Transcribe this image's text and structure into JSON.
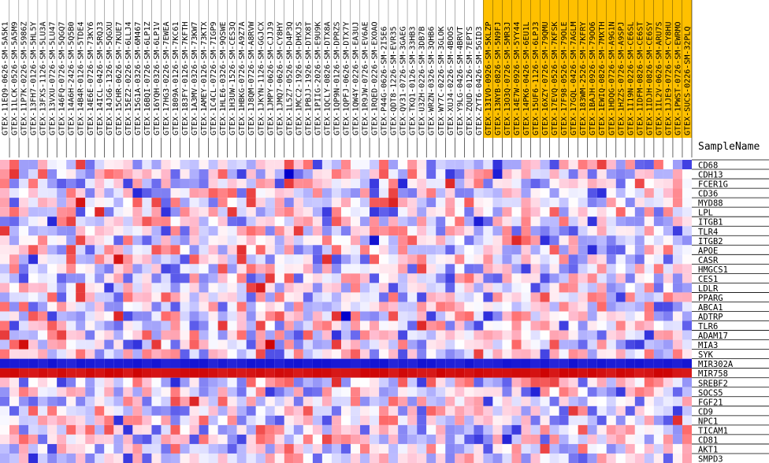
{
  "chart_data": {
    "type": "heatmap",
    "corner_label": "SampleName",
    "samples": [
      "GTEX-11EQ9-0626-SM-5A5K1",
      "GTEX-11LCK-0526-SM-5A5M9",
      "GTEX-11P7K-0226-SM-5986Z",
      "GTEX-13FH7-0126-SM-5HL5Y",
      "GTEX-13FXS-1126-SM-5LU3A",
      "GTEX-13VXU-0726-SM-5LU47",
      "GTEX-146FQ-0726-SM-5QGQ7",
      "GTEX-14A6H-2426-SM-5Q5B0",
      "GTEX-14B4R-0126-SM-5TDE4",
      "GTEX-14E6E-0726-SM-73KY6",
      "GTEX-14ICL-0426-SM-5RQJ3",
      "GTEX-14JG6-1326-SM-5QGXU",
      "GTEX-15CHR-0626-SM-7KUE7",
      "GTEX-15EZ2-0226-SM-6LLJ4",
      "GTEX-15G1A-0326-SM-6M467",
      "GTEX-16BQI-0726-SM-6LP1Z",
      "GTEX-16YQH-0326-SM-6LP1V",
      "GTEX-17HG3-0226-SM-7EWEA",
      "GTEX-1809A-0126-SM-7KC61",
      "GTEX-183FY-0126-SM-7KFTH",
      "GTEX-1A3MV-0326-SM-73KW7",
      "GTEX-1AMEY-0126-SM-73KTX",
      "GTEX-1C4CL-0726-SM-7IGP9",
      "GTEX-1HLE6-0326-SM-9QSWE",
      "GTEX-1H3UW-1526-SM-CES3Q",
      "GTEX-1HBKG-0726-SM-A9Z7A",
      "GTEX-1J8QM-0726-SM-A8RVW",
      "GTEX-1JKYN-1126-SM-GGJCX",
      "GTEX-1JMPY-0626-SM-CJJJ9",
      "GTEX-1JMQ7-0626-SM-CY8HY",
      "GTEX-1L5Z7-0526-SM-D4P3Q",
      "GTEX-1MCC2-1926-SM-DHXJS",
      "GTEX-1PBJJ-1926-SM-DTX8T",
      "GTEX-1PIIG-2026-SM-E9U9K",
      "GTEX-1QCLY-0826-SM-DTX8A",
      "GTEX-1QP9N-0126-SM-DPRZS",
      "GTEX-1QPFJ-0626-SM-DTX7Y",
      "GTEX-1QW4Y-0226-SM-EA3UJ",
      "GTEX-1R9JW-0726-SM-EV6AE",
      "GTEX-1RQED-0226-SM-EXOAO",
      "GTEX-P44G-0626-SM-2I5E6",
      "GTEX-QDT8-1226-SM-EVR35",
      "GTEX-QV31-0726-SM-3GAEG",
      "GTEX-TKQ1-0126-SM-33HB3",
      "GTEX-U3ZH-0226-SM-3DB7B",
      "GTEX-WRZN-0326-SM-3QHB6",
      "GTEX-WY7C-0226-SM-3GLOK",
      "GTEX-XUJ4-0226-SM-4BOOS",
      "GTEX-Y9LG-0426-SM-4BRVT",
      "GTEX-ZQUD-0126-SM-7EPTS",
      "GTEX-ZYT6-0426-SM-5GID3",
      "GTEX-13IVO-0926-SM-5KLZP",
      "GTEX-13NYB-0826-SM-5N9FJ",
      "GTEX-13O3Q-0726-SM-5MR3J",
      "GTEX-14E7W-0926-SM-5YY44",
      "GTEX-14PK6-0426-SM-6EU1L",
      "GTEX-15UF6-1126-SM-6LPJ3",
      "GTEX-16XZY-0726-SM-79QMU",
      "GTEX-17EVQ-0526-SM-7KFSK",
      "GTEX-17F98-0526-SM-79OLE",
      "GTEX-17GQL-0426-SM-7AGLM",
      "GTEX-183WM-2526-SM-7KFRY",
      "GTEX-1BAJH-0926-SM-79OO6",
      "GTEX-1EWIQ-0826-SM-7MXTH",
      "GTEX-1HDQG-0726-SM-A9G1N",
      "GTEX-1HZZS-0726-SM-A9SPJ",
      "GTEX-1I19N-0226-SM-CE6SL",
      "GTEX-1IDFM-0826-SM-CE6ST",
      "GTEX-1IDJH-0826-SM-CE6SY",
      "GTEX-1IL2V-0626-SM-ARU7S",
      "GTEX-1JJE9-0726-SM-CY8HU",
      "GTEX-1PWST-0726-SM-EWRMO",
      "GTEX-SUCS-0226-SM-32PLQ"
    ],
    "highlight_from_index": 51,
    "genes": [
      "CD68",
      "CDH13",
      "FCER1G",
      "CD36",
      "MYD88",
      "LPL",
      "ITGB1",
      "TLR4",
      "ITGB2",
      "APOE",
      "CASR",
      "HMGCS1",
      "CES1",
      "LDLR",
      "PPARG",
      "ABCA1",
      "ADTRP",
      "TLR6",
      "ADAM17",
      "MIA3",
      "SYK",
      "MIR302A",
      "MIR758",
      "SREBF2",
      "SOCS5",
      "FGF21",
      "CD9",
      "NPC1",
      "TICAM1",
      "CD81",
      "AKT1",
      "SMPD3"
    ],
    "value_range": [
      -3,
      3
    ],
    "colors": {
      "low": "#0000cc",
      "mid_low": "#aaaaff",
      "mid": "#ffffff",
      "mid_high": "#ff9999",
      "high": "#cc0000",
      "highlight_label_bg": "#ffc000",
      "normal_label_bg": "#ffffff"
    },
    "row_overrides": {
      "MIR302A": -2.6,
      "MIR758": 2.8
    },
    "random_seed": 7
  }
}
